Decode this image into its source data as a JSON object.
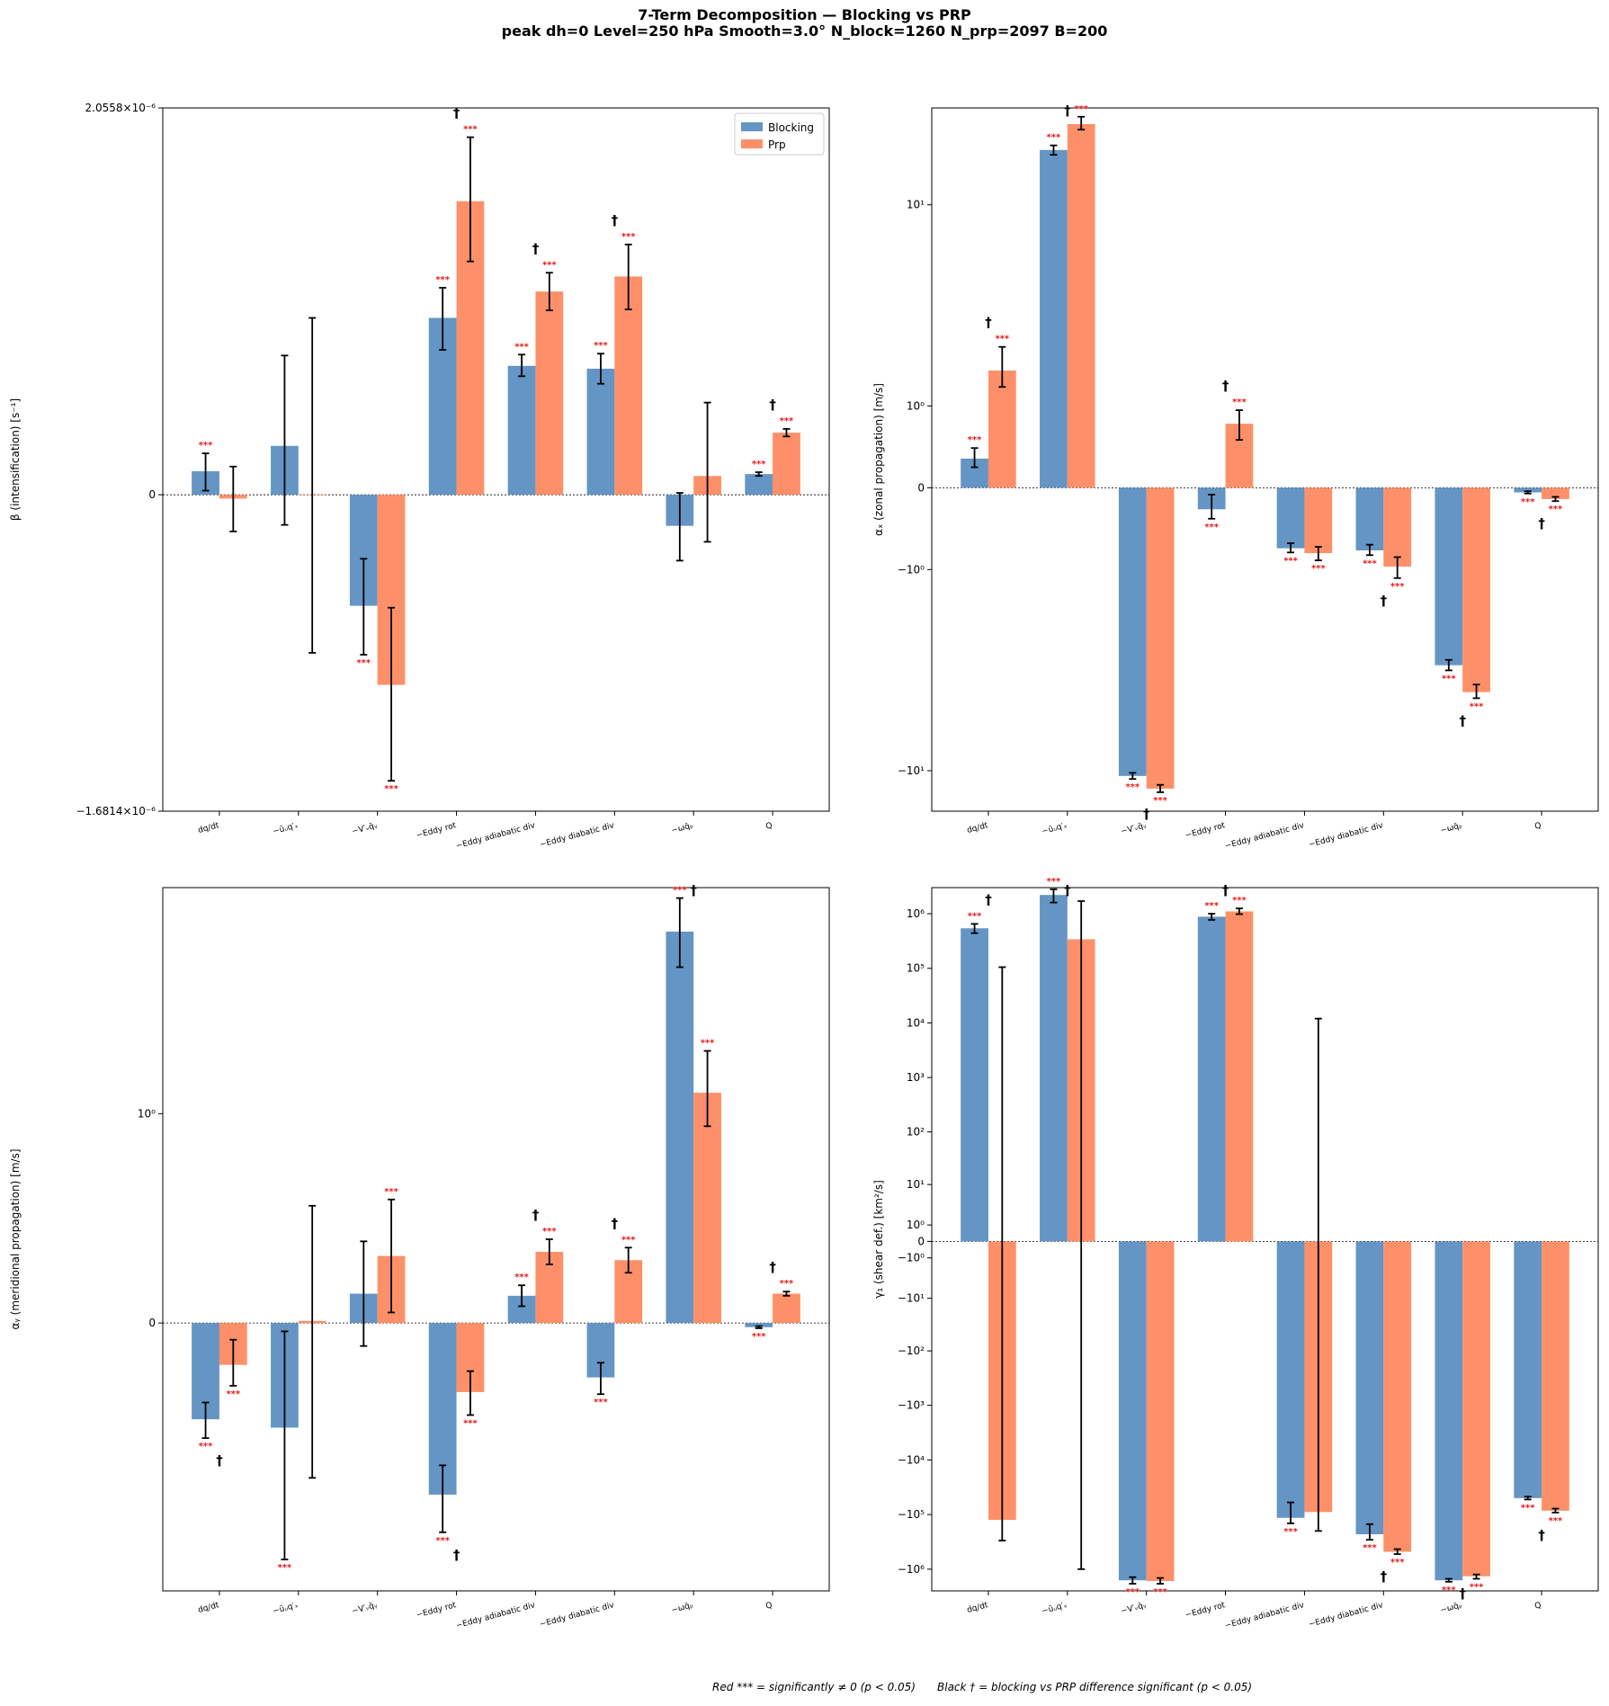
{
  "title_line1": "7-Term Decomposition — Blocking vs PRP",
  "title_line2": "peak dh=0  Level=250 hPa  Smooth=3.0°  N_block=1260  N_prp=2097  B=200",
  "footer_left": "Red *** = significantly ≠ 0  (p < 0.05)",
  "footer_right": "Black † = blocking vs PRP difference significant  (p < 0.05)",
  "marks": {
    "sig": "***",
    "diff": "†"
  },
  "colors": {
    "blocking": "#6495c4",
    "prp": "#fd9068",
    "sig": "#e41a1c"
  },
  "chart_data": [
    {
      "type": "bar",
      "panel": "top-left",
      "ylabel": "β (intensification) [s⁻¹]",
      "yscale": "symlog-small",
      "ylim": [
        -1.6814e-06,
        2.0558e-06
      ],
      "yticks": [
        {
          "v": 2.0558e-06,
          "label": "2.0558×10⁻⁶"
        },
        {
          "v": 0,
          "label": "0"
        },
        {
          "v": -1.6814e-06,
          "label": "−1.6814×10⁻⁶"
        }
      ],
      "categories": [
        "dq/dt",
        "−ūᵤq′ₓ",
        "−V′ᵥq̄ᵧ",
        "−Eddy rot",
        "−Eddy adiabatic div",
        "−Eddy diabatic div",
        "−ωq̄ₚ",
        "Q"
      ],
      "legend": "top-right",
      "legend_entries": [
        "Blocking",
        "Prp"
      ],
      "series": [
        {
          "name": "Blocking",
          "values": [
            1.25e-07,
            2.6e-07,
            -5.9e-07,
            9.4e-07,
            6.85e-07,
            6.7e-07,
            -1.65e-07,
            1.1e-07
          ],
          "err_lo": [
            2.2e-08,
            -1.6e-07,
            -8.5e-07,
            7.7e-07,
            6.3e-07,
            5.9e-07,
            -3.5e-07,
            1e-07
          ],
          "err_hi": [
            2.2e-07,
            7.4e-07,
            -3.4e-07,
            1.1e-06,
            7.45e-07,
            7.5e-07,
            1e-08,
            1.2e-07
          ],
          "sig": [
            true,
            false,
            true,
            true,
            true,
            true,
            false,
            true
          ]
        },
        {
          "name": "Prp",
          "values": [
            -2e-08,
            0.0,
            -1.01e-06,
            1.56e-06,
            1.08e-06,
            1.16e-06,
            1e-07,
            3.3e-07
          ],
          "err_lo": [
            -1.95e-07,
            -8.4e-07,
            -1.52e-06,
            1.24e-06,
            9.8e-07,
            9.85e-07,
            -2.5e-07,
            3.1e-07
          ],
          "err_hi": [
            1.5e-07,
            9.4e-07,
            -6e-07,
            1.9e-06,
            1.18e-06,
            1.33e-06,
            4.9e-07,
            3.5e-07
          ],
          "sig": [
            false,
            false,
            true,
            true,
            true,
            true,
            false,
            true
          ]
        }
      ],
      "diff": [
        false,
        false,
        false,
        true,
        true,
        true,
        false,
        true
      ]
    },
    {
      "type": "bar",
      "panel": "top-right",
      "ylabel": "αₓ (zonal propagation) [m/s]",
      "yscale": "symlog",
      "ylim": [
        -14.5,
        24
      ],
      "yticks": [
        {
          "v": 10,
          "label": "10¹"
        },
        {
          "v": 1,
          "label": "10⁰"
        },
        {
          "v": 0,
          "label": "0"
        },
        {
          "v": -1,
          "label": "−10⁰"
        },
        {
          "v": -10,
          "label": "−10¹"
        }
      ],
      "categories": [
        "dq/dt",
        "−ūᵤq′ₓ",
        "−V′ᵥq̄ᵧ",
        "−Eddy rot",
        "−Eddy adiabatic div",
        "−Eddy diabatic div",
        "−ωq̄ₚ",
        "Q"
      ],
      "series": [
        {
          "name": "Blocking",
          "values": [
            0.28,
            16.5,
            -10.5,
            -0.2,
            -0.67,
            -0.7,
            -3.5,
            -0.04
          ],
          "err_lo": [
            0.19,
            15.8,
            -10.8,
            -0.3,
            -0.73,
            -0.77,
            -3.7,
            -0.05
          ],
          "err_hi": [
            0.4,
            17.2,
            -10.2,
            -0.06,
            -0.6,
            -0.62,
            -3.3,
            -0.03
          ],
          "sig": [
            true,
            true,
            true,
            true,
            true,
            true,
            true,
            true
          ]
        },
        {
          "name": "Prp",
          "values": [
            1.7,
            20.8,
            -11.8,
            0.72,
            -0.74,
            -0.95,
            -4.65,
            -0.1
          ],
          "err_lo": [
            1.35,
            19.8,
            -12.2,
            0.5,
            -0.85,
            -1.15,
            -4.95,
            -0.12
          ],
          "err_hi": [
            2.3,
            22.2,
            -11.4,
            0.93,
            -0.65,
            -0.8,
            -4.3,
            -0.08
          ],
          "sig": [
            true,
            true,
            true,
            true,
            true,
            true,
            true,
            true
          ]
        }
      ],
      "diff": [
        true,
        true,
        true,
        true,
        false,
        true,
        true,
        true
      ]
    },
    {
      "type": "bar",
      "panel": "bottom-left",
      "ylabel": "αᵧ (meridional propagation) [m/s]",
      "yscale": "symlog-small",
      "ylim": [
        -1.28,
        2.08
      ],
      "yticks": [
        {
          "v": 1,
          "label": "10⁰"
        },
        {
          "v": 0,
          "label": "0"
        }
      ],
      "categories": [
        "dq/dt",
        "−ūᵤq′ₓ",
        "−V′ᵥq̄ᵧ",
        "−Eddy rot",
        "−Eddy adiabatic div",
        "−Eddy diabatic div",
        "−ωq̄ₚ",
        "Q"
      ],
      "series": [
        {
          "name": "Blocking",
          "values": [
            -0.46,
            -0.5,
            0.14,
            -0.82,
            0.13,
            -0.26,
            1.87,
            -0.02
          ],
          "err_lo": [
            -0.55,
            -1.13,
            -0.11,
            -1.0,
            0.08,
            -0.34,
            1.7,
            -0.025
          ],
          "err_hi": [
            -0.38,
            -0.04,
            0.39,
            -0.68,
            0.18,
            -0.19,
            2.03,
            -0.015
          ],
          "sig": [
            true,
            true,
            false,
            true,
            true,
            true,
            true,
            true
          ]
        },
        {
          "name": "Prp",
          "values": [
            -0.2,
            0.01,
            0.32,
            -0.33,
            0.34,
            0.3,
            1.1,
            0.14
          ],
          "err_lo": [
            -0.3,
            -0.74,
            0.05,
            -0.44,
            0.28,
            0.24,
            0.94,
            0.13
          ],
          "err_hi": [
            -0.08,
            0.56,
            0.59,
            -0.23,
            0.4,
            0.36,
            1.3,
            0.15
          ],
          "sig": [
            true,
            false,
            true,
            true,
            true,
            true,
            true,
            true
          ]
        }
      ],
      "diff": [
        true,
        false,
        false,
        true,
        true,
        true,
        true,
        true
      ]
    },
    {
      "type": "bar",
      "panel": "bottom-right",
      "ylabel": "γ₁ (shear def.) [km²/s]",
      "yscale": "symlog",
      "ylim": [
        -2500000.0,
        3000000.0
      ],
      "yticks": [
        {
          "v": 1000000.0,
          "label": "10⁶"
        },
        {
          "v": 100000.0,
          "label": "10⁵"
        },
        {
          "v": 10000.0,
          "label": "10⁴"
        },
        {
          "v": 1000.0,
          "label": "10³"
        },
        {
          "v": 100,
          "label": "10²"
        },
        {
          "v": 10,
          "label": "10¹"
        },
        {
          "v": 1,
          "label": "10⁰"
        },
        {
          "v": 0,
          "label": "0"
        },
        {
          "v": -1,
          "label": "−10⁰"
        },
        {
          "v": -10,
          "label": "−10¹"
        },
        {
          "v": -100,
          "label": "−10²"
        },
        {
          "v": -1000,
          "label": "−10³"
        },
        {
          "v": -10000.0,
          "label": "−10⁴"
        },
        {
          "v": -100000.0,
          "label": "−10⁵"
        },
        {
          "v": -1000000.0,
          "label": "−10⁶"
        }
      ],
      "categories": [
        "dq/dt",
        "−ūᵤq′ₓ",
        "−V′ᵥq̄ᵧ",
        "−Eddy rot",
        "−Eddy adiabatic div",
        "−Eddy diabatic div",
        "−ωq̄ₚ",
        "Q"
      ],
      "series": [
        {
          "name": "Blocking",
          "values": [
            540000.0,
            2200000.0,
            -1600000.0,
            880000.0,
            -115000.0,
            -230000.0,
            -1600000.0,
            -50000.0
          ],
          "err_lo": [
            440000.0,
            1600000.0,
            -1850000.0,
            770000.0,
            -145000.0,
            -290000.0,
            -1700000.0,
            -53000.0
          ],
          "err_hi": [
            650000.0,
            2800000.0,
            -1400000.0,
            1000000.0,
            -60000.0,
            -150000.0,
            -1500000.0,
            -47000.0
          ],
          "sig": [
            true,
            true,
            true,
            true,
            true,
            true,
            true,
            true
          ]
        },
        {
          "name": "Prp",
          "values": [
            -125000.0,
            340000.0,
            -1650000.0,
            1100000.0,
            -90000.0,
            -480000.0,
            -1350000.0,
            -85000.0
          ],
          "err_lo": [
            -300000.0,
            -1000000.0,
            -1850000.0,
            980000.0,
            -200000.0,
            -530000.0,
            -1500000.0,
            -92000.0
          ],
          "err_hi": [
            105000.0,
            1700000.0,
            -1450000.0,
            1250000.0,
            12000.0,
            -430000.0,
            -1250000.0,
            -78000.0
          ],
          "sig": [
            false,
            false,
            true,
            true,
            false,
            true,
            true,
            true
          ]
        }
      ],
      "diff": [
        true,
        true,
        false,
        true,
        false,
        true,
        true,
        true
      ]
    }
  ]
}
